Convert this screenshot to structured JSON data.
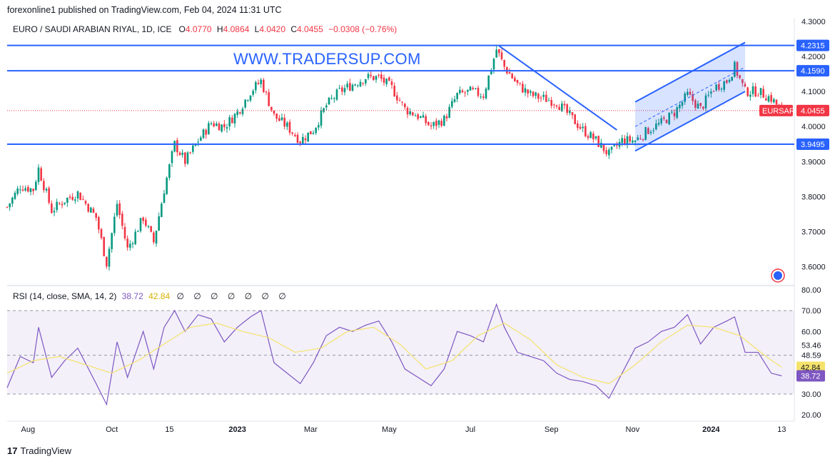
{
  "header": {
    "published": "forexonline1 published on TradingView.com, Feb 04, 2024 11:31 UTC"
  },
  "legend": {
    "title": "EURO / SAUDI ARABIAN RIYAL, 1D, ICE",
    "o_label": "O",
    "o_value": "4.0770",
    "h_label": "H",
    "h_value": "4.0864",
    "l_label": "L",
    "l_value": "4.0420",
    "c_label": "C",
    "c_value": "4.0455",
    "change": "−0.0308 (−0.76%)"
  },
  "watermark": "WWW.TRADERSUP.COM",
  "rsi_legend": {
    "title": "RSI (14, close, SMA, 14, 2)",
    "rsi_value": "38.72",
    "sma_value": "42.84",
    "empty_marks": "∅ ∅ ∅ ∅ ∅ ∅ ∅"
  },
  "footer": {
    "logo_mark": "17",
    "logo_text": "TradingView"
  },
  "colors": {
    "up": "#089981",
    "down": "#f23645",
    "line": "#2962ff",
    "rsi": "#7e57c2",
    "rsi_sma": "#f5e26b"
  },
  "chart_data": [
    {
      "type": "candlestick",
      "title": "EURO / SAUDI ARABIAN RIYAL, 1D, ICE",
      "symbol": "EURSAR",
      "ylim": [
        3.55,
        4.3
      ],
      "y_ticks": [
        "4.3000",
        "4.2000",
        "4.1000",
        "4.0000",
        "3.9000",
        "3.8000",
        "3.7000",
        "3.6000"
      ],
      "x_ticks": [
        "Aug",
        "Oct",
        "15",
        "2023",
        "Mar",
        "May",
        "Jul",
        "Sep",
        "Nov",
        "2024",
        "13"
      ],
      "last_price": "4.0455",
      "symbol_tag": "EURSAR",
      "horizontal_levels": [
        "4.2315",
        "4.1590",
        "3.9495"
      ],
      "close_path": [
        {
          "x": 0,
          "y": 3.77
        },
        {
          "x": 5,
          "y": 3.83
        },
        {
          "x": 10,
          "y": 3.82
        },
        {
          "x": 12,
          "y": 3.88
        },
        {
          "x": 17,
          "y": 3.76
        },
        {
          "x": 22,
          "y": 3.79
        },
        {
          "x": 27,
          "y": 3.81
        },
        {
          "x": 34,
          "y": 3.74
        },
        {
          "x": 38,
          "y": 3.61
        },
        {
          "x": 42,
          "y": 3.78
        },
        {
          "x": 46,
          "y": 3.65
        },
        {
          "x": 52,
          "y": 3.74
        },
        {
          "x": 56,
          "y": 3.67
        },
        {
          "x": 60,
          "y": 3.82
        },
        {
          "x": 64,
          "y": 3.95
        },
        {
          "x": 68,
          "y": 3.9
        },
        {
          "x": 73,
          "y": 3.96
        },
        {
          "x": 78,
          "y": 4.01
        },
        {
          "x": 83,
          "y": 4.0
        },
        {
          "x": 88,
          "y": 4.04
        },
        {
          "x": 93,
          "y": 4.1
        },
        {
          "x": 97,
          "y": 4.13
        },
        {
          "x": 102,
          "y": 4.03
        },
        {
          "x": 107,
          "y": 4.0
        },
        {
          "x": 112,
          "y": 3.96
        },
        {
          "x": 117,
          "y": 3.99
        },
        {
          "x": 122,
          "y": 4.06
        },
        {
          "x": 127,
          "y": 4.1
        },
        {
          "x": 132,
          "y": 4.12
        },
        {
          "x": 137,
          "y": 4.14
        },
        {
          "x": 142,
          "y": 4.14
        },
        {
          "x": 147,
          "y": 4.11
        },
        {
          "x": 152,
          "y": 4.05
        },
        {
          "x": 157,
          "y": 4.03
        },
        {
          "x": 162,
          "y": 4.0
        },
        {
          "x": 167,
          "y": 4.02
        },
        {
          "x": 172,
          "y": 4.09
        },
        {
          "x": 177,
          "y": 4.1
        },
        {
          "x": 182,
          "y": 4.09
        },
        {
          "x": 187,
          "y": 4.22
        },
        {
          "x": 190,
          "y": 4.17
        },
        {
          "x": 195,
          "y": 4.12
        },
        {
          "x": 200,
          "y": 4.09
        },
        {
          "x": 205,
          "y": 4.08
        },
        {
          "x": 210,
          "y": 4.07
        },
        {
          "x": 215,
          "y": 4.03
        },
        {
          "x": 220,
          "y": 3.99
        },
        {
          "x": 225,
          "y": 3.96
        },
        {
          "x": 230,
          "y": 3.92
        },
        {
          "x": 235,
          "y": 3.96
        },
        {
          "x": 240,
          "y": 3.96
        },
        {
          "x": 245,
          "y": 3.99
        },
        {
          "x": 250,
          "y": 4.01
        },
        {
          "x": 255,
          "y": 4.04
        },
        {
          "x": 260,
          "y": 4.09
        },
        {
          "x": 265,
          "y": 4.05
        },
        {
          "x": 270,
          "y": 4.11
        },
        {
          "x": 275,
          "y": 4.13
        },
        {
          "x": 278,
          "y": 4.17
        },
        {
          "x": 282,
          "y": 4.1
        },
        {
          "x": 287,
          "y": 4.1
        },
        {
          "x": 292,
          "y": 4.08
        },
        {
          "x": 296,
          "y": 4.0455
        }
      ],
      "trendlines": [
        {
          "from": {
            "x": 188,
            "y": 4.23
          },
          "to": {
            "x": 233,
            "y": 3.99
          }
        },
        {
          "from": {
            "x": 240,
            "y": 4.07
          },
          "to": {
            "x": 282,
            "y": 4.24
          }
        },
        {
          "from": {
            "x": 240,
            "y": 3.93
          },
          "to": {
            "x": 282,
            "y": 4.1
          }
        }
      ]
    },
    {
      "type": "line",
      "title": "RSI (14, close, SMA, 14, 2)",
      "ylim": [
        17,
        82
      ],
      "y_ticks": [
        "80.00",
        "70.00",
        "60.00",
        "53.46",
        "48.59",
        "30.00",
        "20.00"
      ],
      "band": [
        30,
        70
      ],
      "mid_dashed": 48.59,
      "rsi_last": "38.72",
      "sma_last": "42.84",
      "series": [
        {
          "name": "RSI",
          "x": [
            0,
            5,
            10,
            12,
            17,
            22,
            27,
            34,
            38,
            42,
            46,
            52,
            56,
            60,
            64,
            68,
            73,
            78,
            83,
            88,
            93,
            97,
            102,
            107,
            112,
            117,
            122,
            127,
            132,
            137,
            142,
            147,
            152,
            157,
            162,
            167,
            172,
            177,
            182,
            187,
            190,
            195,
            200,
            205,
            210,
            215,
            220,
            225,
            230,
            235,
            240,
            245,
            250,
            255,
            260,
            265,
            270,
            275,
            278,
            282,
            287,
            292,
            296
          ],
          "values": [
            33,
            48,
            45,
            62,
            38,
            46,
            52,
            35,
            25,
            55,
            38,
            60,
            42,
            62,
            70,
            60,
            68,
            66,
            55,
            62,
            67,
            70,
            45,
            40,
            35,
            45,
            58,
            62,
            60,
            63,
            65,
            55,
            42,
            38,
            34,
            42,
            60,
            58,
            55,
            73,
            62,
            50,
            48,
            46,
            40,
            37,
            36,
            34,
            28,
            40,
            52,
            55,
            60,
            62,
            68,
            54,
            62,
            65,
            67,
            50,
            50,
            40,
            38.72
          ]
        },
        {
          "name": "SMA",
          "x": [
            0,
            10,
            20,
            30,
            40,
            50,
            60,
            70,
            80,
            90,
            100,
            110,
            120,
            130,
            140,
            150,
            160,
            170,
            180,
            190,
            200,
            210,
            220,
            230,
            240,
            250,
            260,
            270,
            280,
            290,
            296
          ],
          "values": [
            40,
            46,
            48,
            44,
            40,
            46,
            54,
            62,
            64,
            60,
            57,
            50,
            52,
            60,
            62,
            54,
            42,
            46,
            58,
            64,
            56,
            44,
            38,
            35,
            44,
            55,
            63,
            62,
            58,
            48,
            42.84
          ]
        }
      ]
    }
  ]
}
